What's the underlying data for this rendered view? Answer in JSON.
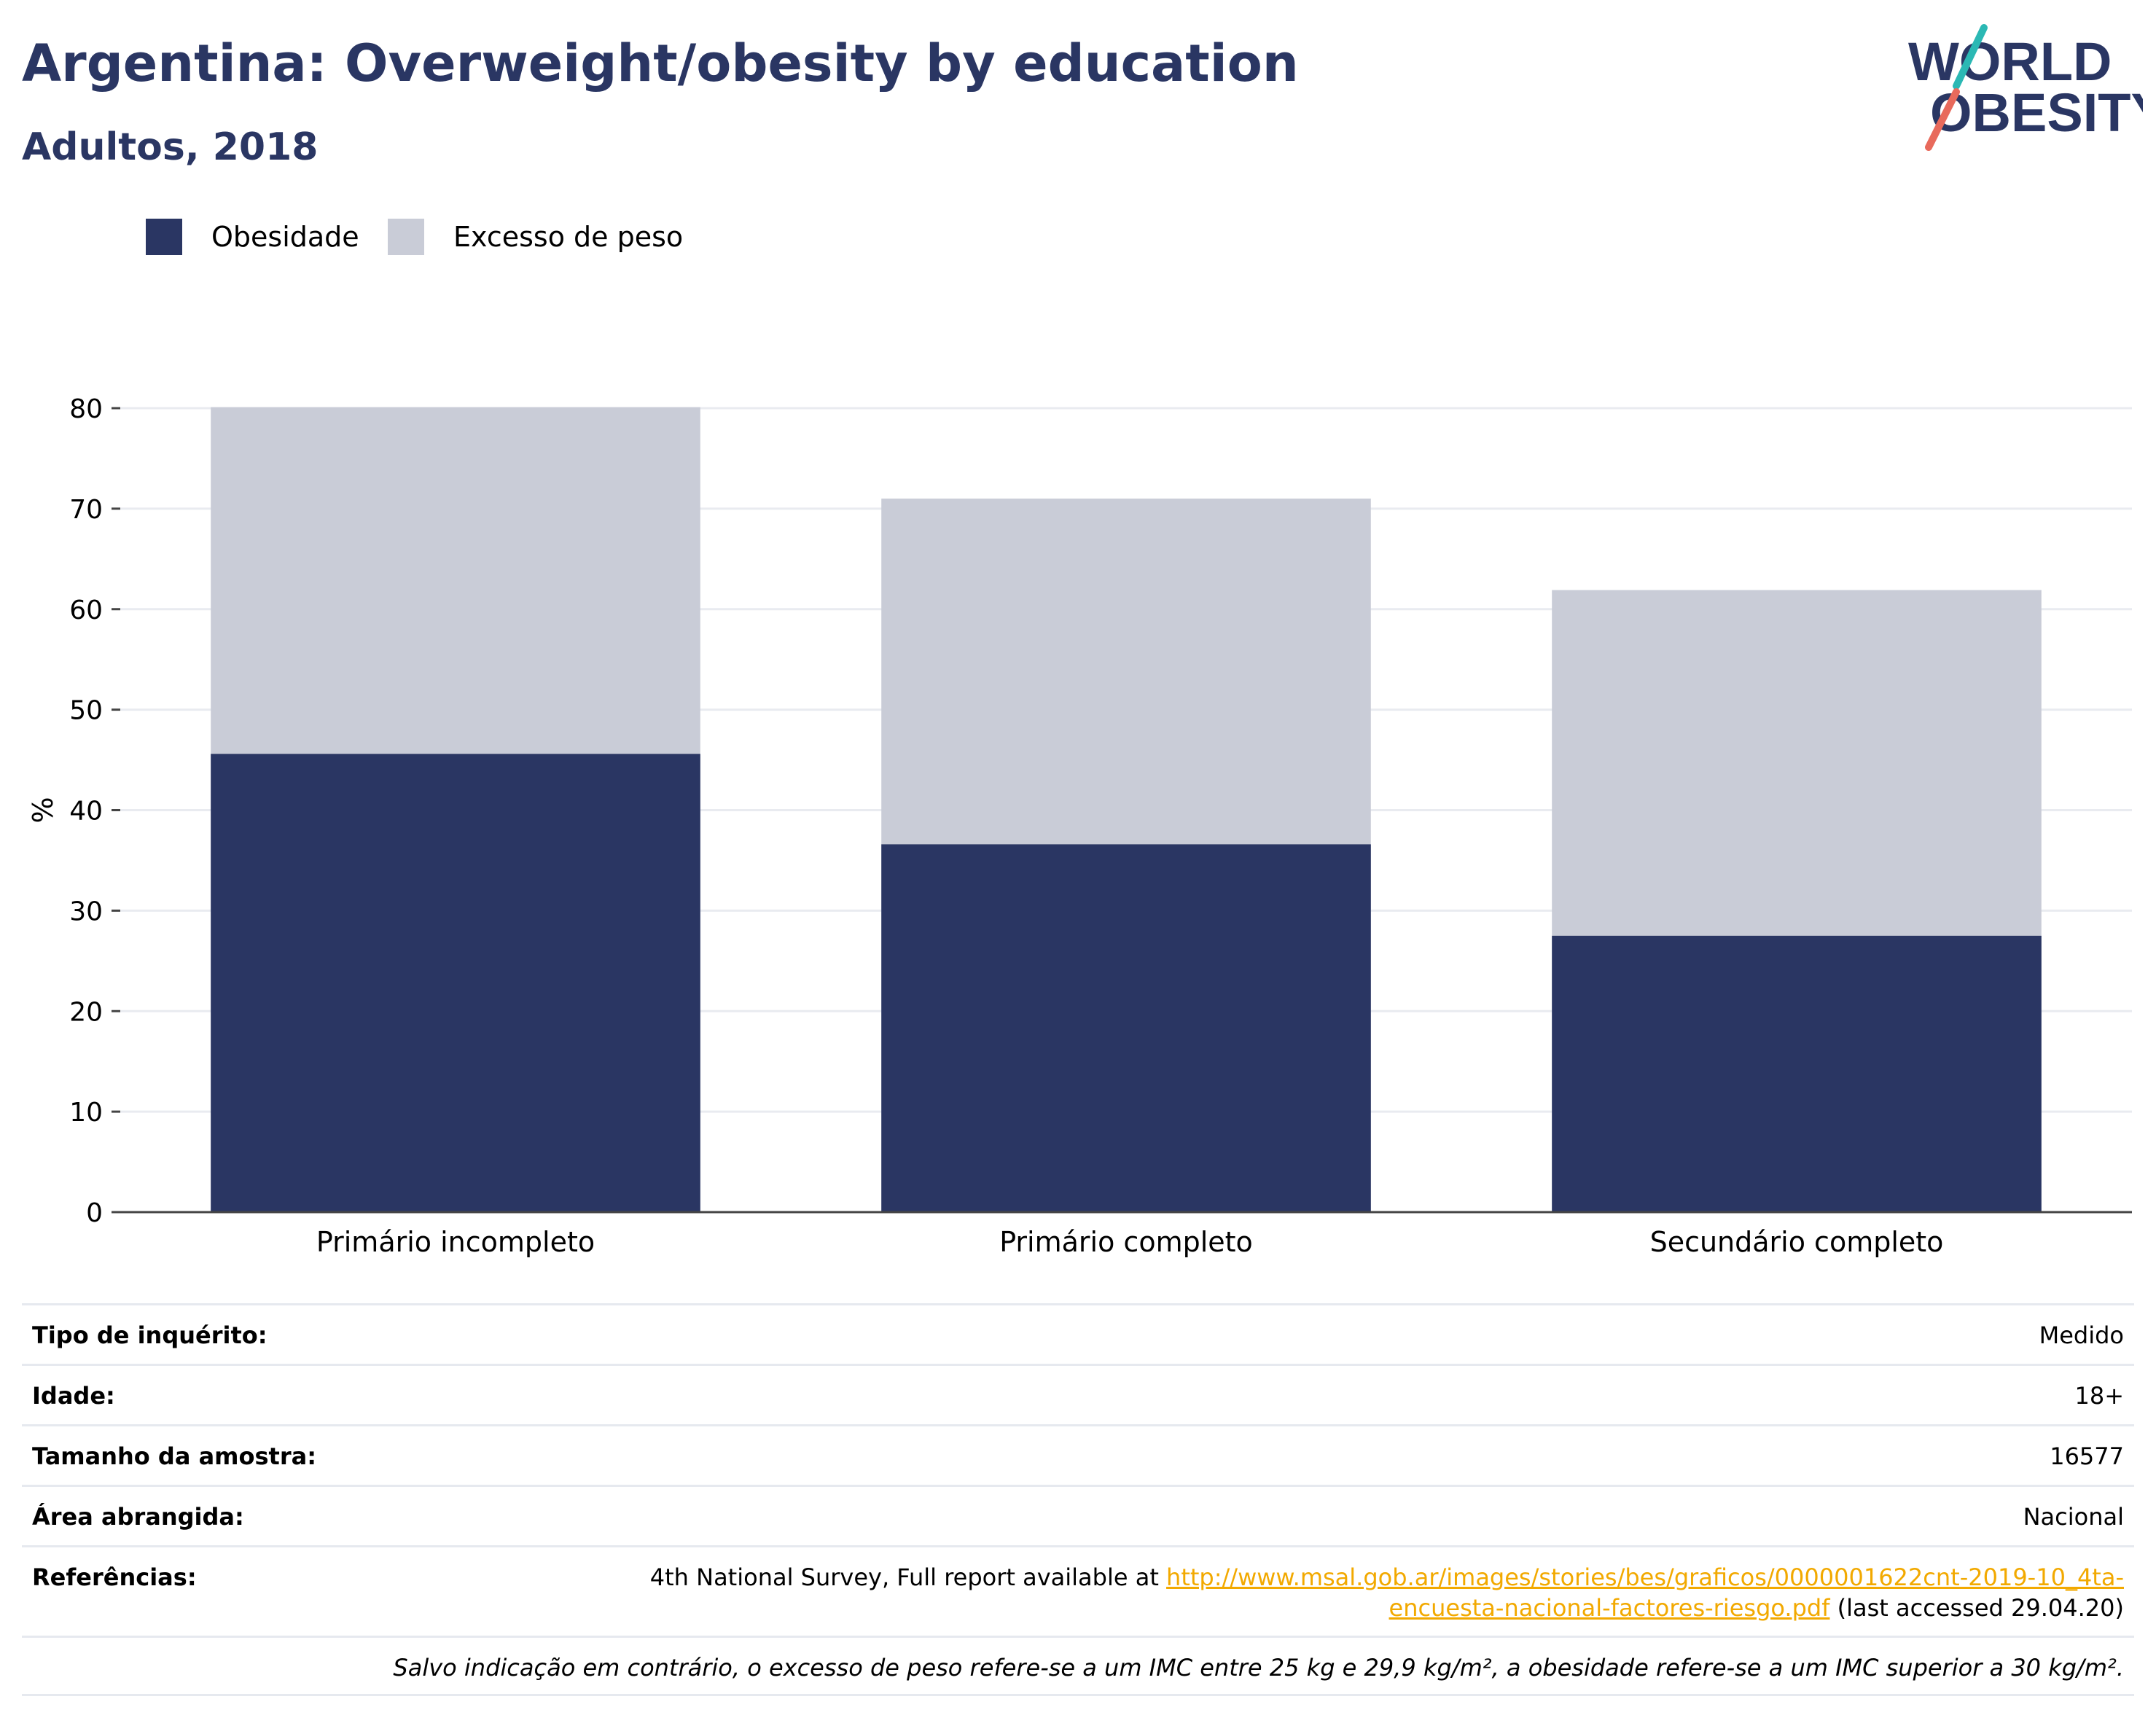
{
  "title": "Argentina: Overweight/obesity by education",
  "subtitle": "Adultos, 2018",
  "logo": {
    "line1": "WORLD",
    "line2": "OBESITY"
  },
  "colors": {
    "obesity": "#2a3663",
    "overweight": "#c9ccd7",
    "accent_teal": "#2bb8b4",
    "accent_coral": "#e86a5c",
    "link": "#f2a900"
  },
  "chart_data": {
    "type": "bar",
    "stacked": false,
    "overlay": true,
    "categories": [
      "Primário incompleto",
      "Primário completo",
      "Secundário completo"
    ],
    "series": [
      {
        "name": "Obesidade",
        "values": [
          45.6,
          36.6,
          27.5
        ]
      },
      {
        "name": "Excesso de peso",
        "values": [
          80.1,
          71.0,
          61.9
        ]
      }
    ],
    "ylabel": "%",
    "ylim": [
      0,
      80
    ],
    "yticks": [
      0,
      10,
      20,
      30,
      40,
      50,
      60,
      70,
      80
    ],
    "grid": true,
    "legend": "top-left"
  },
  "info": {
    "rows": [
      {
        "label": "Tipo de inquérito:",
        "value": "Medido"
      },
      {
        "label": "Idade:",
        "value": "18+"
      },
      {
        "label": "Tamanho da amostra:",
        "value": "16577"
      },
      {
        "label": "Área abrangida:",
        "value": "Nacional"
      }
    ],
    "references": {
      "label": "Referências:",
      "prefix": "4th National Survey, Full report available at ",
      "link_part1": "http://www.msal.gob.ar/images/stories/bes/graficos/0000001622cnt-2019-10_4ta-",
      "link_part2": "encuesta-nacional-factores-riesgo.pdf",
      "suffix": " (last accessed 29.04.20)"
    },
    "footnote": "Salvo indicação em contrário, o excesso de peso refere-se a um IMC entre 25 kg e 29,9 kg/m², a obesidade refere-se a um IMC superior a 30 kg/m²."
  }
}
